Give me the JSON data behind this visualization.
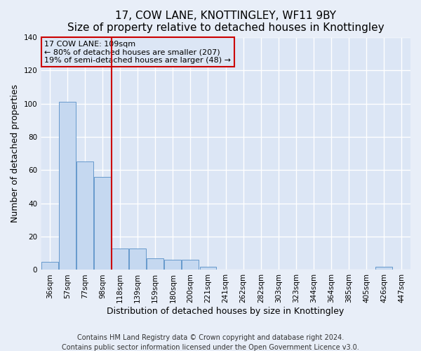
{
  "title": "17, COW LANE, KNOTTINGLEY, WF11 9BY",
  "subtitle": "Size of property relative to detached houses in Knottingley",
  "xlabel": "Distribution of detached houses by size in Knottingley",
  "ylabel": "Number of detached properties",
  "categories": [
    "36sqm",
    "57sqm",
    "77sqm",
    "98sqm",
    "118sqm",
    "139sqm",
    "159sqm",
    "180sqm",
    "200sqm",
    "221sqm",
    "241sqm",
    "262sqm",
    "282sqm",
    "303sqm",
    "323sqm",
    "344sqm",
    "364sqm",
    "385sqm",
    "405sqm",
    "426sqm",
    "447sqm"
  ],
  "values": [
    5,
    101,
    65,
    56,
    13,
    13,
    7,
    6,
    6,
    2,
    0,
    0,
    0,
    0,
    0,
    0,
    0,
    0,
    0,
    2,
    0
  ],
  "bar_color": "#c5d8f0",
  "bar_edge_color": "#6699cc",
  "vline_x": 3.5,
  "vline_color": "#cc0000",
  "ylim": [
    0,
    140
  ],
  "yticks": [
    0,
    20,
    40,
    60,
    80,
    100,
    120,
    140
  ],
  "annotation_title": "17 COW LANE: 109sqm",
  "annotation_line1": "← 80% of detached houses are smaller (207)",
  "annotation_line2": "19% of semi-detached houses are larger (48) →",
  "annotation_box_color": "#cc0000",
  "footer1": "Contains HM Land Registry data © Crown copyright and database right 2024.",
  "footer2": "Contains public sector information licensed under the Open Government Licence v3.0.",
  "bg_color": "#e8eef8",
  "plot_bg_color": "#dce6f5",
  "grid_color": "#ffffff",
  "title_fontsize": 11,
  "subtitle_fontsize": 9.5,
  "axis_label_fontsize": 9,
  "tick_fontsize": 7.5,
  "annotation_fontsize": 8,
  "footer_fontsize": 7
}
